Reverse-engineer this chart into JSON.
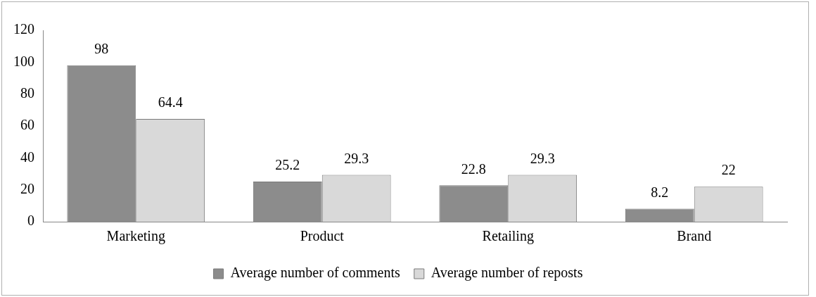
{
  "chart_data": {
    "type": "bar",
    "categories": [
      "Marketing",
      "Product",
      "Retailing",
      "Brand"
    ],
    "series": [
      {
        "name": "Average number of comments",
        "color": "#8c8c8c",
        "values": [
          98,
          25.2,
          22.8,
          8.2
        ]
      },
      {
        "name": "Average number of reposts",
        "color": "#d9d9d9",
        "values": [
          64.4,
          29.3,
          29.3,
          22
        ]
      }
    ],
    "ylim": [
      0,
      120
    ],
    "yticks": [
      0,
      20,
      40,
      60,
      80,
      100,
      120
    ],
    "grid": false,
    "legend": "bottom",
    "data_labels": true
  }
}
